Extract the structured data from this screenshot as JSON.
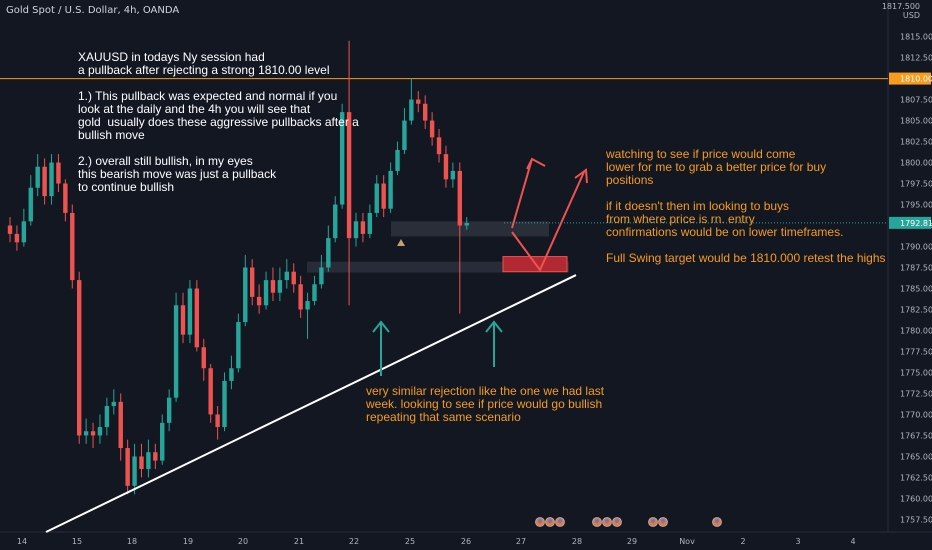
{
  "symbol_title": "Gold Spot / U.S. Dollar, 4h, OANDA",
  "currency_label": "USD",
  "price_axis_top": "1817.500",
  "level_1810_label": "1810.000",
  "current_price_label": "1792.815",
  "notes": {
    "top_left": "XAUUSD in todays Ny session had\na pullback after rejecting a strong 1810.00 level\n\n1.) This pullback was expected and normal if you\nlook at the daily and the 4h you will see that\ngold  usually does these aggressive pullbacks after a\nbullish move\n\n2.) overall still bullish, in my eyes\nthis bearish move was just a pullback\nto continue bullish",
    "right": "watching to see if price would come\nlower for me to grab a better price for buy\npositions\n\nif it doesn't then im looking to buys\nfrom where price is rn. entry\nconfirmations would be on lower timeframes.\n\nFull Swing target would be 1810.000 retest the highs",
    "bottom": "very similar rejection like the one we had last\nweek. looking to see if price would go bullish\nrepeating that same scenario"
  },
  "colors": {
    "background": "#131722",
    "bull": "#26a69a",
    "bear": "#ef5350",
    "level_line": "#f79c1c",
    "note_white": "#ffffff",
    "note_orange": "#f79c1c",
    "arrow_teal": "#26a69a",
    "arrow_red": "#ef5350",
    "trendline": "#ffffff"
  },
  "chart_data": {
    "type": "candlestick",
    "title": "Gold Spot / U.S. Dollar, 4h, OANDA",
    "y_range": [
      1756,
      1819
    ],
    "y_ticks": [
      1817.5,
      1815,
      1812.5,
      1810,
      1807.5,
      1805,
      1802.5,
      1800,
      1797.5,
      1795,
      1792.5,
      1790,
      1787.5,
      1785,
      1782.5,
      1780,
      1777.5,
      1775,
      1772.5,
      1770,
      1767.5,
      1765,
      1762.5,
      1760,
      1757.5
    ],
    "x_tick_labels": [
      "14",
      "15",
      "18",
      "19",
      "20",
      "21",
      "22",
      "25",
      "26",
      "27",
      "28",
      "29",
      "Nov",
      "2",
      "3",
      "4"
    ],
    "horizontal_level": 1810,
    "current_price": 1792.815,
    "candles": [
      [
        1792.5,
        1791.5,
        1793.5,
        1790.5
      ],
      [
        1791.5,
        1790.5,
        1792.5,
        1789.5
      ],
      [
        1790.5,
        1793,
        1794.5,
        1790
      ],
      [
        1793,
        1797,
        1798.5,
        1792.5
      ],
      [
        1797,
        1799.5,
        1801,
        1796
      ],
      [
        1799.5,
        1796,
        1800.5,
        1795
      ],
      [
        1796,
        1800,
        1801,
        1795
      ],
      [
        1800,
        1797.5,
        1801,
        1796.5
      ],
      [
        1797.5,
        1794,
        1798,
        1793
      ],
      [
        1794,
        1786,
        1795,
        1785
      ],
      [
        1786,
        1767.5,
        1787,
        1766.5
      ],
      [
        1767.5,
        1768,
        1769.5,
        1766.5
      ],
      [
        1768,
        1767.5,
        1769,
        1766
      ],
      [
        1767.5,
        1768.5,
        1770,
        1766.5
      ],
      [
        1768.5,
        1771,
        1772,
        1767.5
      ],
      [
        1771,
        1771.5,
        1773,
        1770
      ],
      [
        1771.5,
        1766,
        1772.5,
        1764.5
      ],
      [
        1766,
        1761.5,
        1767,
        1760.5
      ],
      [
        1761.5,
        1765,
        1766.5,
        1760.5
      ],
      [
        1765,
        1763.5,
        1766.5,
        1762.5
      ],
      [
        1763.5,
        1765.5,
        1767,
        1762.5
      ],
      [
        1765.5,
        1764.5,
        1766.5,
        1763.5
      ],
      [
        1764.5,
        1769,
        1770,
        1764
      ],
      [
        1769,
        1772,
        1773,
        1768
      ],
      [
        1772,
        1783,
        1784.5,
        1771.5
      ],
      [
        1783,
        1779.5,
        1784.5,
        1778.5
      ],
      [
        1779.5,
        1785,
        1786,
        1778.5
      ],
      [
        1785,
        1778,
        1786,
        1777.5
      ],
      [
        1778,
        1775.5,
        1779,
        1774
      ],
      [
        1775.5,
        1770,
        1776,
        1769
      ],
      [
        1770,
        1768.5,
        1771,
        1767
      ],
      [
        1768.5,
        1774,
        1775,
        1768
      ],
      [
        1774,
        1775.5,
        1777,
        1773
      ],
      [
        1775.5,
        1781,
        1782,
        1775
      ],
      [
        1781,
        1787.5,
        1789,
        1780.5
      ],
      [
        1787.5,
        1784,
        1788.5,
        1783
      ],
      [
        1784,
        1783,
        1785.5,
        1782
      ],
      [
        1783,
        1786,
        1787,
        1782.5
      ],
      [
        1786,
        1784.5,
        1787.5,
        1783.5
      ],
      [
        1784.5,
        1786,
        1787.5,
        1783.5
      ],
      [
        1786,
        1787,
        1788.5,
        1785
      ],
      [
        1787,
        1785.5,
        1788,
        1784.5
      ],
      [
        1785.5,
        1782.5,
        1786.5,
        1781.5
      ],
      [
        1782.5,
        1783.5,
        1784.5,
        1779
      ],
      [
        1783.5,
        1785.5,
        1786.5,
        1783
      ],
      [
        1785.5,
        1787.5,
        1789,
        1785
      ],
      [
        1787.5,
        1791,
        1792.5,
        1787
      ],
      [
        1791,
        1795,
        1796,
        1790.5
      ],
      [
        1795,
        1806,
        1807,
        1794.5
      ],
      [
        1806,
        1791,
        1814.5,
        1783
      ],
      [
        1791,
        1793,
        1794,
        1790
      ],
      [
        1793,
        1791.5,
        1794,
        1790.5
      ],
      [
        1791.5,
        1794,
        1795,
        1791
      ],
      [
        1794,
        1797.5,
        1798.5,
        1793.5
      ],
      [
        1797.5,
        1794.5,
        1798.5,
        1793.5
      ],
      [
        1794.5,
        1799,
        1800,
        1794
      ],
      [
        1799,
        1801.5,
        1802.5,
        1798.5
      ],
      [
        1801.5,
        1805,
        1806.5,
        1801
      ],
      [
        1805,
        1807.5,
        1810,
        1804.5
      ],
      [
        1807.5,
        1807,
        1808.5,
        1806
      ],
      [
        1807,
        1805,
        1808,
        1804
      ],
      [
        1805,
        1803,
        1806,
        1802
      ],
      [
        1803,
        1801,
        1804,
        1800
      ],
      [
        1801,
        1798,
        1802,
        1797
      ],
      [
        1798,
        1799,
        1800,
        1797
      ],
      [
        1799,
        1792.5,
        1800,
        1782
      ],
      [
        1792.5,
        1792.8,
        1793.5,
        1792
      ]
    ]
  }
}
